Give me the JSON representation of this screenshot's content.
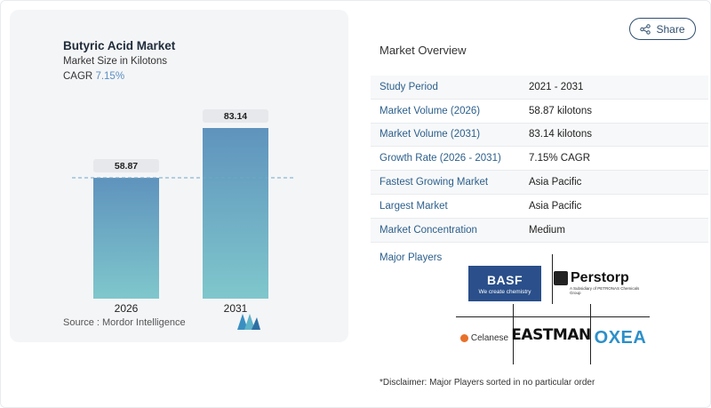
{
  "chart_data": {
    "type": "bar",
    "title": "Butyric Acid Market",
    "subtitle": "Market Size in Kilotons",
    "cagr_label": "CAGR",
    "cagr_value": "7.15%",
    "categories": [
      "2026",
      "2031"
    ],
    "values": [
      58.87,
      83.14
    ],
    "value_labels": [
      "58.87",
      "83.14"
    ],
    "ylim": [
      0,
      83.14
    ],
    "colors": {
      "bar_top": "#5f93bd",
      "bar_bottom": "#7fc7cc",
      "label_bg": "#e6e8eb",
      "dashed": "#6fa8c7"
    },
    "grid": false
  },
  "source": "Source :  Mordor Intelligence",
  "share_label": "Share",
  "overview": {
    "title": "Market Overview",
    "rows": [
      {
        "label": "Study Period",
        "value": "2021 - 2031"
      },
      {
        "label": "Market Volume (2026)",
        "value": "58.87 kilotons"
      },
      {
        "label": "Market Volume (2031)",
        "value": "83.14 kilotons"
      },
      {
        "label": "Growth Rate (2026 - 2031)",
        "value": "7.15% CAGR"
      },
      {
        "label": "Fastest Growing Market",
        "value": "Asia Pacific"
      },
      {
        "label": "Largest Market",
        "value": "Asia Pacific"
      },
      {
        "label": "Market Concentration",
        "value": "Medium"
      }
    ]
  },
  "players": {
    "label": "Major Players",
    "basf": {
      "name": "BASF",
      "tag": "We create chemistry"
    },
    "perstorp": {
      "name": "Perstorp",
      "tag": "A Subsidiary of PETRONAS Chemicals Group"
    },
    "celanese": "Celanese",
    "eastman": "EASTMAN",
    "oxea": "OXEA"
  },
  "disclaimer": "*Disclaimer: Major Players sorted in no particular order"
}
